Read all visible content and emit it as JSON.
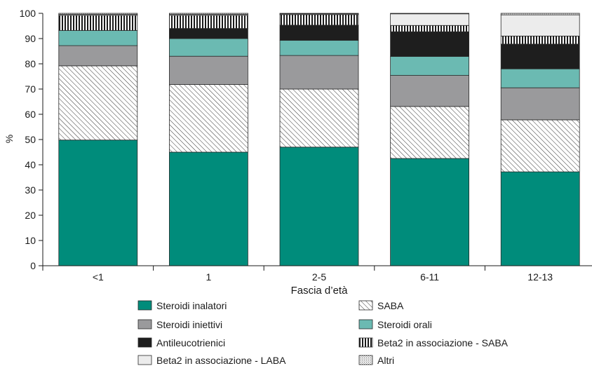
{
  "chart_data": {
    "type": "bar",
    "stacked": true,
    "title": "",
    "xlabel": "Fascia d’età",
    "ylabel": "%",
    "ylim": [
      0,
      100
    ],
    "yticks": [
      "0",
      "10",
      "20",
      "30",
      "40",
      "50",
      "60",
      "70",
      "80",
      "90",
      "100"
    ],
    "categories": [
      "<1",
      "1",
      "2-5",
      "6-11",
      "12-13"
    ],
    "legend_position": "bottom",
    "series": [
      {
        "name": "Steroidi inalatori",
        "color": "#008c7b",
        "pattern": "solid",
        "values": [
          49.8,
          45.0,
          47.0,
          42.5,
          37.2
        ]
      },
      {
        "name": "SABA",
        "color": "#ffffff",
        "pattern": "diagonal-hatch",
        "values": [
          29.4,
          26.8,
          23.0,
          20.6,
          20.6
        ]
      },
      {
        "name": "Steroidi iniettivi",
        "color": "#9a9a9c",
        "pattern": "solid",
        "values": [
          8.0,
          11.2,
          13.3,
          12.3,
          12.7
        ]
      },
      {
        "name": "Steroidi orali",
        "color": "#6bbab2",
        "pattern": "solid",
        "values": [
          6.0,
          7.0,
          6.0,
          7.5,
          7.5
        ]
      },
      {
        "name": "Antileucotrienici",
        "color": "#1e1e1e",
        "pattern": "solid",
        "values": [
          0.0,
          4.0,
          6.0,
          9.8,
          9.8
        ]
      },
      {
        "name": "Beta2 in associazione - SABA",
        "color": "#ffffff",
        "pattern": "vertical-stripes",
        "values": [
          6.0,
          5.2,
          4.2,
          2.5,
          3.2
        ]
      },
      {
        "name": "Beta2 in associazione - LABA",
        "color": "#ececec",
        "pattern": "solid",
        "values": [
          0.4,
          0.4,
          0.3,
          4.6,
          8.4
        ]
      },
      {
        "name": "Altri",
        "color": "#ffffff",
        "pattern": "dots",
        "values": [
          0.4,
          0.4,
          0.2,
          0.2,
          0.6
        ]
      }
    ]
  }
}
